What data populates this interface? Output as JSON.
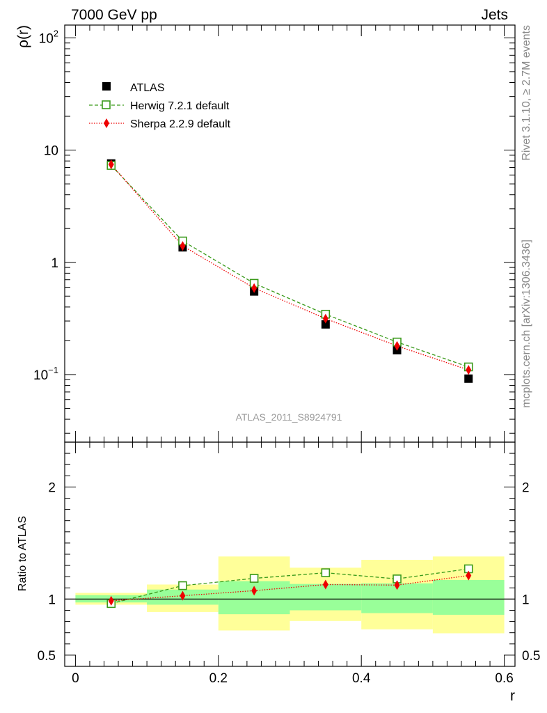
{
  "header": {
    "left": "7000 GeV pp",
    "right": "Jets"
  },
  "side_labels": {
    "rivet": "Rivet 3.1.10, ≥ 2.7M events",
    "mcplots": "mcplots.cern.ch [arXiv:1306.3436]"
  },
  "watermark": "ATLAS_2011_S8924791",
  "colors": {
    "atlas": "#000000",
    "herwig": "#3a9a1a",
    "sherpa": "#ee0000",
    "band_inner": "#99ff99",
    "band_outer": "#ffff99"
  },
  "chart_data": [
    {
      "type": "scatter",
      "panel": "main",
      "ylabel": "ρ(r)",
      "yscale": "log",
      "ylim": [
        0.025,
        130
      ],
      "xlim": [
        -0.015,
        0.615
      ],
      "ytick_labels": [
        {
          "value": 100,
          "label": "10",
          "exp": "2"
        },
        {
          "value": 10,
          "label": "10",
          "exp": ""
        },
        {
          "value": 1,
          "label": "1",
          "exp": ""
        },
        {
          "value": 0.1,
          "label": "10",
          "exp": "−1"
        }
      ],
      "legend_position": "top-left",
      "x": [
        0.05,
        0.15,
        0.25,
        0.35,
        0.45,
        0.55
      ],
      "series": [
        {
          "name": "ATLAS",
          "values": [
            7.6,
            1.36,
            0.55,
            0.28,
            0.165,
            0.092
          ],
          "marker": "filled-square"
        },
        {
          "name": "Herwig 7.2.1 default",
          "values": [
            7.3,
            1.55,
            0.65,
            0.345,
            0.195,
            0.117
          ],
          "marker": "open-square",
          "line": "dashed"
        },
        {
          "name": "Sherpa 2.2.9 default",
          "values": [
            7.45,
            1.4,
            0.59,
            0.315,
            0.18,
            0.11
          ],
          "marker": "diamond",
          "line": "dotted"
        }
      ]
    },
    {
      "type": "scatter",
      "panel": "ratio",
      "ylabel": "Ratio to ATLAS",
      "xlabel": "r",
      "ylim": [
        0.4,
        2.4
      ],
      "xlim": [
        -0.015,
        0.615
      ],
      "xticks": [
        0,
        0.2,
        0.4,
        0.6
      ],
      "xtick_labels": [
        "0",
        "0.2",
        "0.4",
        "0.6"
      ],
      "yticks": [
        0.5,
        1,
        2
      ],
      "ytick_labels": [
        "0.5",
        "1",
        "2"
      ],
      "bins": [
        [
          0,
          0.1
        ],
        [
          0.1,
          0.2
        ],
        [
          0.2,
          0.3
        ],
        [
          0.3,
          0.4
        ],
        [
          0.4,
          0.5
        ],
        [
          0.5,
          0.6
        ]
      ],
      "band_inner": [
        [
          0.97,
          1.035
        ],
        [
          0.95,
          1.085
        ],
        [
          0.865,
          1.16
        ],
        [
          0.9,
          1.135
        ],
        [
          0.875,
          1.14
        ],
        [
          0.86,
          1.17
        ]
      ],
      "band_outer": [
        [
          0.95,
          1.055
        ],
        [
          0.885,
          1.13
        ],
        [
          0.72,
          1.38
        ],
        [
          0.805,
          1.28
        ],
        [
          0.73,
          1.35
        ],
        [
          0.695,
          1.38
        ]
      ],
      "x": [
        0.05,
        0.15,
        0.25,
        0.35,
        0.45,
        0.55
      ],
      "series": [
        {
          "name": "Herwig 7.2.1 default",
          "values": [
            0.96,
            1.12,
            1.185,
            1.235,
            1.18,
            1.27
          ]
        },
        {
          "name": "Sherpa 2.2.9 default",
          "values": [
            0.985,
            1.03,
            1.075,
            1.13,
            1.125,
            1.21
          ]
        }
      ]
    }
  ]
}
